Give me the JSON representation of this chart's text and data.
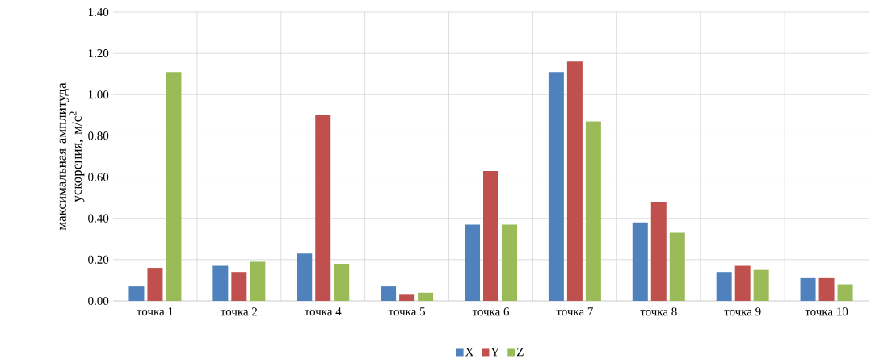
{
  "chart_data": {
    "type": "bar",
    "ylabel": "максимальная амплитуда ускорения, м/с$^{2}$",
    "categories": [
      "точка 1",
      "точка 2",
      "точка 4",
      "точка 5",
      "точка 6",
      "точка 7",
      "точка 8",
      "точка 9",
      "точка 10"
    ],
    "series": [
      {
        "name": "X",
        "color": "#4f81bd",
        "values": [
          0.07,
          0.17,
          0.23,
          0.07,
          0.37,
          1.11,
          0.38,
          0.14,
          0.11
        ]
      },
      {
        "name": "Y",
        "color": "#c0504d",
        "values": [
          0.16,
          0.14,
          0.9,
          0.03,
          0.63,
          1.16,
          0.48,
          0.17,
          0.11
        ]
      },
      {
        "name": "Z",
        "color": "#9bbb59",
        "values": [
          1.11,
          0.19,
          0.18,
          0.04,
          0.37,
          0.87,
          0.33,
          0.15,
          0.08
        ]
      }
    ],
    "ylim": [
      0,
      1.4
    ],
    "yticks": [
      {
        "value": 0,
        "label": "0.00"
      },
      {
        "value": 0.2,
        "label": "0.20"
      },
      {
        "value": 0.4,
        "label": "0.40"
      },
      {
        "value": 0.6,
        "label": "0.60"
      },
      {
        "value": 0.8,
        "label": "0.80"
      },
      {
        "value": 1.0,
        "label": "1.00"
      },
      {
        "value": 1.2,
        "label": "1.20"
      },
      {
        "value": 1.4,
        "label": "1.40"
      }
    ],
    "grid": true,
    "legend": "bottom"
  }
}
